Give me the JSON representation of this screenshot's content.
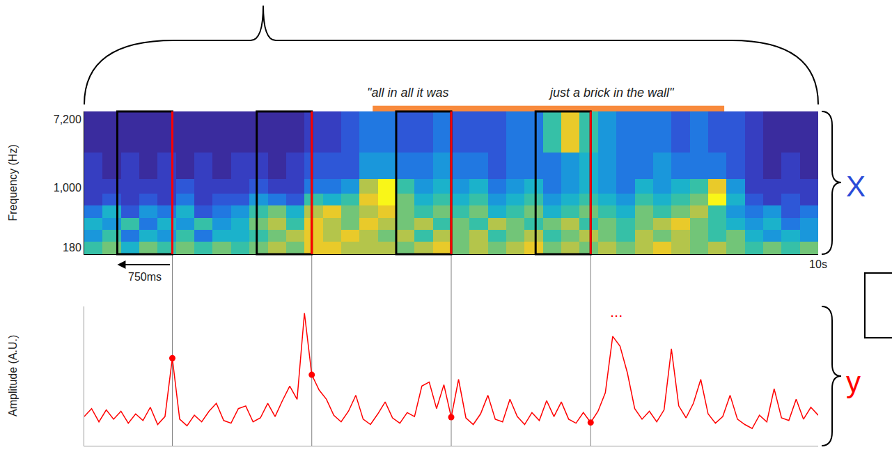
{
  "chart_data": [
    {
      "type": "heatmap",
      "ylabel": "Frequency (Hz)",
      "side_label": "X",
      "window_label": "750ms",
      "log": "y",
      "xlim": [
        0,
        10
      ],
      "xticks": [
        {
          "value": 10,
          "label": "10s"
        }
      ],
      "ylim": [
        147,
        9150
      ],
      "yticks": [
        180,
        {
          "value": 1000,
          "label": "1,000"
        },
        {
          "value": 7200,
          "label": "7,200"
        }
      ],
      "zlim": [
        0,
        1
      ],
      "x": [
        0,
        0.25,
        0.5,
        0.75,
        1,
        1.25,
        1.5,
        1.75,
        2,
        2.25,
        2.5,
        2.75,
        3,
        3.25,
        3.5,
        3.75,
        4,
        4.25,
        4.5,
        4.75,
        5,
        5.25,
        5.5,
        5.75,
        6,
        6.25,
        6.5,
        6.75,
        7,
        7.25,
        7.5,
        7.75,
        8,
        8.25,
        8.5,
        8.75,
        9,
        9.25,
        9.5,
        9.75,
        10
      ],
      "y": [
        147,
        210,
        300,
        420,
        600,
        850,
        1300,
        2800,
        9150
      ],
      "z": [
        [
          0.6,
          0.7,
          0.5,
          0.7,
          0.6,
          0.7,
          0.6,
          0.7,
          0.6,
          0.7,
          0.8,
          0.7,
          0.9,
          0.9,
          0.8,
          0.8,
          0.8,
          0.7,
          0.8,
          0.9,
          0.7,
          0.8,
          0.7,
          0.8,
          0.9,
          0.7,
          0.8,
          0.7,
          0.8,
          0.7,
          0.8,
          0.9,
          0.8,
          0.7,
          0.8,
          0.7,
          0.6,
          0.7,
          0.6,
          0.7
        ],
        [
          0.4,
          0.6,
          0.3,
          0.5,
          0.4,
          0.6,
          0.3,
          0.5,
          0.5,
          0.6,
          0.7,
          0.8,
          0.9,
          0.8,
          0.9,
          0.8,
          0.7,
          0.8,
          0.6,
          0.8,
          0.7,
          0.8,
          0.6,
          0.7,
          0.8,
          0.6,
          0.7,
          0.8,
          0.7,
          0.6,
          0.8,
          0.7,
          0.8,
          0.7,
          0.6,
          0.7,
          0.5,
          0.4,
          0.5,
          0.4
        ],
        [
          0.5,
          0.4,
          0.6,
          0.3,
          0.5,
          0.4,
          0.6,
          0.4,
          0.5,
          0.7,
          0.8,
          0.6,
          0.9,
          0.8,
          0.7,
          0.9,
          0.8,
          0.7,
          0.8,
          0.6,
          0.7,
          0.6,
          0.8,
          0.7,
          0.6,
          0.7,
          0.8,
          0.6,
          0.7,
          0.6,
          0.7,
          0.8,
          0.9,
          0.7,
          0.6,
          0.5,
          0.4,
          0.5,
          0.3,
          0.4
        ],
        [
          0.3,
          0.5,
          0.2,
          0.4,
          0.3,
          0.5,
          0.2,
          0.3,
          0.4,
          0.6,
          0.7,
          0.5,
          0.8,
          0.9,
          0.7,
          0.8,
          0.9,
          0.7,
          0.6,
          0.7,
          0.6,
          0.7,
          0.5,
          0.6,
          0.7,
          0.5,
          0.6,
          0.7,
          0.6,
          0.5,
          0.7,
          0.6,
          0.7,
          0.8,
          0.6,
          0.4,
          0.3,
          0.4,
          0.2,
          0.3
        ],
        [
          0.1,
          0.2,
          0.1,
          0.2,
          0.1,
          0.3,
          0.1,
          0.2,
          0.2,
          0.4,
          0.3,
          0.2,
          0.6,
          0.5,
          0.6,
          0.9,
          1.0,
          0.7,
          0.5,
          0.6,
          0.5,
          0.6,
          0.4,
          0.5,
          0.6,
          0.4,
          0.5,
          0.6,
          0.5,
          0.4,
          0.6,
          0.5,
          0.6,
          0.7,
          1.0,
          0.5,
          0.2,
          0.1,
          0.2,
          0.1
        ],
        [
          0.1,
          0.1,
          0.1,
          0.1,
          0.1,
          0.2,
          0.1,
          0.1,
          0.1,
          0.2,
          0.1,
          0.1,
          0.3,
          0.3,
          0.4,
          0.8,
          1.0,
          0.6,
          0.4,
          0.5,
          0.4,
          0.5,
          0.3,
          0.4,
          0.5,
          0.3,
          0.4,
          0.5,
          0.4,
          0.3,
          0.5,
          0.4,
          0.5,
          0.6,
          0.9,
          0.4,
          0.1,
          0.1,
          0.1,
          0.1
        ],
        [
          0.1,
          0.0,
          0.1,
          0.0,
          0.1,
          0.0,
          0.1,
          0.0,
          0.1,
          0.1,
          0.0,
          0.1,
          0.2,
          0.2,
          0.2,
          0.4,
          0.4,
          0.3,
          0.3,
          0.4,
          0.3,
          0.3,
          0.2,
          0.3,
          0.3,
          0.3,
          0.4,
          0.5,
          0.4,
          0.3,
          0.3,
          0.4,
          0.3,
          0.3,
          0.3,
          0.2,
          0.1,
          0.0,
          0.1,
          0.0
        ],
        [
          0.0,
          0.0,
          0.0,
          0.0,
          0.0,
          0.0,
          0.0,
          0.0,
          0.0,
          0.0,
          0.0,
          0.0,
          0.1,
          0.1,
          0.2,
          0.3,
          0.3,
          0.2,
          0.2,
          0.3,
          0.2,
          0.2,
          0.2,
          0.3,
          0.3,
          0.6,
          0.9,
          0.6,
          0.4,
          0.3,
          0.3,
          0.3,
          0.2,
          0.3,
          0.2,
          0.2,
          0.1,
          0.0,
          0.0,
          0.0
        ]
      ],
      "windows": {
        "start": [
          0.45,
          2.35,
          4.25,
          6.15
        ],
        "end": [
          1.2,
          3.1,
          5.0,
          6.9
        ]
      },
      "lyrics_span": [
        3.93,
        8.72
      ],
      "lyrics": [
        {
          "text": "\"all in all it was",
          "x": 3.83
        },
        {
          "text": "just a brick in the wall\"",
          "x": 6.3
        }
      ]
    },
    {
      "type": "line",
      "ylabel": "Amplitude (A.U.)",
      "side_label": "y",
      "color": "#ff0000",
      "marker": "circle",
      "tick_labels": false,
      "xlim": [
        0,
        10
      ],
      "ylim": [
        0,
        10.5
      ],
      "x": [
        0,
        0.1,
        0.2,
        0.3,
        0.4,
        0.5,
        0.6,
        0.7,
        0.8,
        0.9,
        1,
        1.1,
        1.2,
        1.3,
        1.4,
        1.5,
        1.6,
        1.7,
        1.8,
        1.9,
        2,
        2.1,
        2.2,
        2.3,
        2.4,
        2.5,
        2.6,
        2.7,
        2.8,
        2.9,
        3,
        3.1,
        3.2,
        3.3,
        3.4,
        3.5,
        3.6,
        3.7,
        3.8,
        3.9,
        4,
        4.1,
        4.2,
        4.3,
        4.4,
        4.5,
        4.6,
        4.7,
        4.8,
        4.9,
        5,
        5.1,
        5.2,
        5.3,
        5.4,
        5.5,
        5.6,
        5.7,
        5.8,
        5.9,
        6,
        6.1,
        6.2,
        6.3,
        6.4,
        6.5,
        6.6,
        6.7,
        6.8,
        6.9,
        7,
        7.1,
        7.2,
        7.3,
        7.4,
        7.5,
        7.6,
        7.7,
        7.8,
        7.9,
        8,
        8.1,
        8.2,
        8.3,
        8.4,
        8.5,
        8.6,
        8.7,
        8.8,
        8.9,
        9,
        9.1,
        9.2,
        9.3,
        9.4,
        9.5,
        9.6,
        9.7,
        9.8,
        9.9,
        10
      ],
      "values": [
        2.2,
        2.8,
        1.8,
        2.7,
        2.0,
        2.6,
        1.7,
        2.4,
        1.9,
        2.9,
        1.6,
        2.2,
        6.6,
        2.0,
        1.5,
        2.3,
        1.8,
        2.6,
        3.2,
        1.9,
        1.7,
        2.8,
        3.0,
        1.8,
        2.1,
        3.2,
        2.2,
        3.4,
        4.5,
        3.5,
        10,
        5.35,
        4.2,
        3.5,
        2.3,
        1.8,
        2.6,
        3.8,
        2.0,
        1.6,
        2.4,
        3.3,
        2.1,
        1.7,
        2.5,
        2.2,
        4.5,
        4.8,
        2.8,
        4.6,
        2.15,
        5.0,
        2.1,
        1.6,
        2.4,
        3.8,
        2.0,
        1.8,
        3.5,
        2.2,
        1.6,
        2.5,
        1.9,
        3.4,
        2.2,
        3.3,
        2.0,
        1.7,
        2.5,
        1.75,
        2.6,
        4.0,
        8.25,
        7.5,
        5.5,
        2.8,
        2.0,
        2.6,
        1.8,
        2.7,
        7.3,
        3.0,
        2.1,
        3.2,
        5.0,
        2.4,
        1.7,
        2.2,
        3.8,
        2.0,
        1.6,
        1.3,
        2.3,
        1.8,
        4.3,
        2.1,
        1.9,
        3.5,
        2.0,
        2.9,
        2.3
      ],
      "samples": [
        1.2,
        3.1,
        5.0,
        6.9
      ],
      "annotations": [
        {
          "text": "...",
          "x": 7.25,
          "y": 10.1
        }
      ]
    }
  ]
}
